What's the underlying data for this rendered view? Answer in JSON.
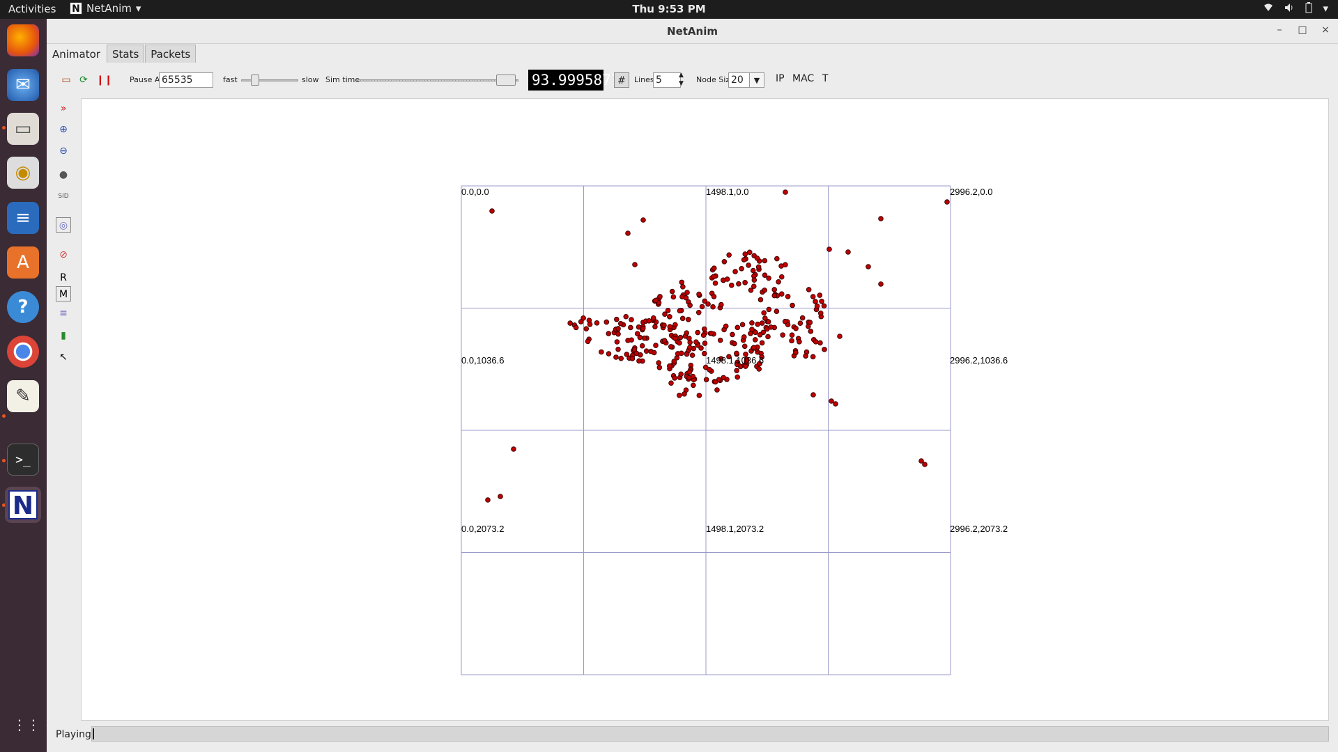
{
  "topbar": {
    "activities": "Activities",
    "app_name": "NetAnim",
    "app_icon_letter": "N",
    "clock": "Thu  9:53 PM",
    "tray_icons": [
      "wifi-icon",
      "volume-icon",
      "battery-icon",
      "menu-caret-icon"
    ]
  },
  "dock": {
    "apps": [
      "firefox-icon",
      "thunderbird-icon",
      "files-icon",
      "rhythmbox-icon",
      "libreoffice-writer-icon",
      "software-center-icon",
      "help-icon",
      "chrome-icon",
      "text-editor-icon",
      "terminal-icon",
      "netanim-icon"
    ],
    "netanim_letter": "N"
  },
  "window": {
    "title": "NetAnim"
  },
  "tabs": [
    "Animator",
    "Stats",
    "Packets"
  ],
  "toolbar": {
    "pause_at_label": "Pause At",
    "pause_at_value": "65535",
    "fast_label": "fast",
    "slow_label": "slow",
    "sim_time_label": "Sim time",
    "sim_time_value": "93.9995877",
    "grid_icon": "#",
    "lines_label": "Lines",
    "lines_value": "5",
    "node_size_label": "Node Size",
    "node_size_value": "20",
    "ip_label": "IP",
    "mac_label": "MAC",
    "t_label": "T"
  },
  "sidetools": {
    "r_label": "R",
    "m_label": "M"
  },
  "grid_labels": {
    "tl": "0.0,0.0",
    "tm": "1498.1,0.0",
    "tr": "2996.2,0.0",
    "ml": "0.0,1036.6",
    "mm": "1498.1,1036.6",
    "mr": "2996.2,1036.6",
    "bl": "0.0,2073.2",
    "bm": "1498.1,2073.2",
    "br": "2996.2,2073.2"
  },
  "status": {
    "text": "Playing"
  },
  "colors": {
    "node_fill": "#c00000",
    "node_stroke": "#3a0000",
    "grid_line": "#9a9ac8"
  }
}
